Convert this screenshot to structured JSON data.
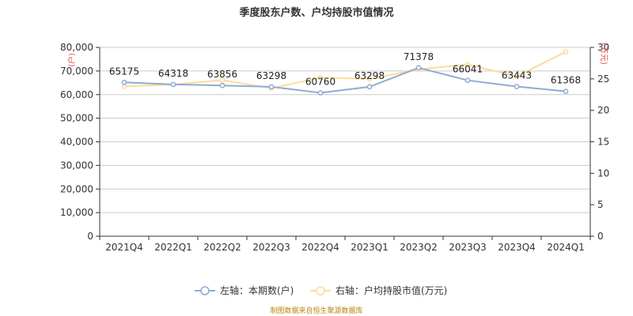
{
  "chart_data": {
    "type": "line",
    "title": "季度股东户数、户均持股市值情况",
    "categories": [
      "2021Q4",
      "2022Q1",
      "2022Q2",
      "2022Q3",
      "2022Q4",
      "2023Q1",
      "2023Q2",
      "2023Q3",
      "2023Q4",
      "2024Q1"
    ],
    "series": [
      {
        "name": "左轴：本期数(户)",
        "axis": "left",
        "color": "#8fabd6",
        "values": [
          65175,
          64318,
          63856,
          63298,
          60760,
          63298,
          71378,
          66041,
          63443,
          61368
        ],
        "data_labels": [
          "65175",
          "64318",
          "63856",
          "63298",
          "60760",
          "63298",
          "71378",
          "66041",
          "63443",
          "61368"
        ]
      },
      {
        "name": "右轴：户均持股市值(万元)",
        "axis": "right",
        "color": "#ffdb9a",
        "values": [
          23.8,
          24.1,
          24.8,
          23.5,
          25.2,
          25.0,
          26.5,
          27.3,
          25.4,
          29.3
        ]
      }
    ],
    "yleft": {
      "label": "(户)",
      "ylim": [
        0,
        80000
      ],
      "ticks": [
        "0",
        "10,000",
        "20,000",
        "30,000",
        "40,000",
        "50,000",
        "60,000",
        "70,000",
        "80,000"
      ]
    },
    "yright": {
      "label": "(万元)",
      "ylim": [
        0,
        30
      ],
      "ticks": [
        "0",
        "5",
        "10",
        "15",
        "20",
        "25",
        "30"
      ]
    },
    "grid": true,
    "legend_position": "bottom"
  },
  "footer": {
    "source": "制图数据来自恒生聚源数据库"
  },
  "colors": {
    "grid": "#cccccc",
    "axis": "#333333",
    "unit": "#d9534f"
  }
}
